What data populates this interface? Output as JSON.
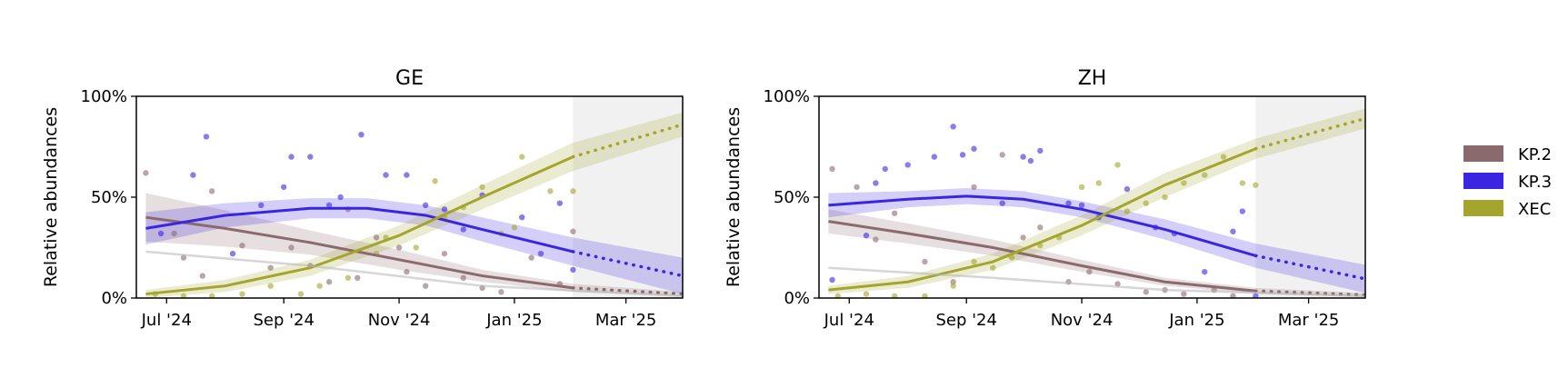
{
  "chart_data": {
    "type": "line",
    "ylabel": "Relative abundances",
    "y_ticks": [
      "0%",
      "50%",
      "100%"
    ],
    "x_ticks": [
      {
        "date": "2024-07-01",
        "label": "Jul '24"
      },
      {
        "date": "2024-09-01",
        "label": "Sep '24"
      },
      {
        "date": "2024-11-01",
        "label": "Nov '24"
      },
      {
        "date": "2025-01-01",
        "label": "Jan '25"
      },
      {
        "date": "2025-03-01",
        "label": "Mar '25"
      }
    ],
    "xlim": [
      "2024-06-15",
      "2025-03-31"
    ],
    "ylim": [
      0,
      1
    ],
    "forecast_start": "2025-02-01",
    "legend": {
      "position": "right",
      "entries": [
        {
          "name": "KP.2",
          "color": "#8b6a6e"
        },
        {
          "name": "KP.3",
          "color": "#3a26e0"
        },
        {
          "name": "XEC",
          "color": "#a3a52c"
        }
      ]
    },
    "colors": {
      "KP.2": "#8b6a6e",
      "KP.3": "#3a26e0",
      "XEC": "#a3a52c",
      "other": "#b4b4b4",
      "forecast_shade": "#e0e0e0"
    },
    "panels": [
      {
        "title": "GE",
        "series": [
          {
            "name": "KP.2",
            "fit": [
              [
                "2024-06-20",
                0.4
              ],
              [
                "2024-08-01",
                0.345
              ],
              [
                "2024-09-15",
                0.275
              ],
              [
                "2024-11-01",
                0.19
              ],
              [
                "2024-12-15",
                0.11
              ],
              [
                "2025-02-01",
                0.05
              ],
              [
                "2025-03-31",
                0.02
              ]
            ],
            "band": [
              0.12,
              0.09,
              0.06,
              0.05,
              0.03,
              0.02,
              0.01
            ],
            "points": [
              [
                "2024-06-20",
                0.62
              ],
              [
                "2024-07-05",
                0.32
              ],
              [
                "2024-07-10",
                0.2
              ],
              [
                "2024-07-20",
                0.11
              ],
              [
                "2024-07-25",
                0.53
              ],
              [
                "2024-08-10",
                0.26
              ],
              [
                "2024-08-25",
                0.15
              ],
              [
                "2024-09-05",
                0.25
              ],
              [
                "2024-09-15",
                0.16
              ],
              [
                "2024-09-25",
                0.08
              ],
              [
                "2024-10-05",
                0.44
              ],
              [
                "2024-10-10",
                0.1
              ],
              [
                "2024-10-20",
                0.3
              ],
              [
                "2024-11-01",
                0.25
              ],
              [
                "2024-11-05",
                0.13
              ],
              [
                "2024-11-15",
                0.06
              ],
              [
                "2024-11-25",
                0.22
              ],
              [
                "2024-12-05",
                0.1
              ],
              [
                "2024-12-15",
                0.05
              ],
              [
                "2024-12-25",
                0.03
              ],
              [
                "2025-01-10",
                0.2
              ],
              [
                "2025-01-25",
                0.07
              ],
              [
                "2025-02-01",
                0.33
              ]
            ]
          },
          {
            "name": "KP.3",
            "fit": [
              [
                "2024-06-20",
                0.345
              ],
              [
                "2024-08-01",
                0.41
              ],
              [
                "2024-09-15",
                0.445
              ],
              [
                "2024-10-15",
                0.445
              ],
              [
                "2024-11-15",
                0.41
              ],
              [
                "2024-12-15",
                0.34
              ],
              [
                "2025-02-01",
                0.23
              ],
              [
                "2025-03-31",
                0.11
              ]
            ],
            "band": [
              0.08,
              0.06,
              0.05,
              0.05,
              0.05,
              0.06,
              0.07,
              0.09
            ],
            "points": [
              [
                "2024-06-28",
                0.32
              ],
              [
                "2024-07-15",
                0.61
              ],
              [
                "2024-07-22",
                0.8
              ],
              [
                "2024-08-05",
                0.22
              ],
              [
                "2024-08-20",
                0.46
              ],
              [
                "2024-09-01",
                0.55
              ],
              [
                "2024-09-05",
                0.7
              ],
              [
                "2024-09-15",
                0.7
              ],
              [
                "2024-09-25",
                0.46
              ],
              [
                "2024-10-01",
                0.5
              ],
              [
                "2024-10-12",
                0.81
              ],
              [
                "2024-10-25",
                0.61
              ],
              [
                "2024-11-05",
                0.61
              ],
              [
                "2024-11-15",
                0.46
              ],
              [
                "2024-11-25",
                0.44
              ],
              [
                "2024-12-05",
                0.34
              ],
              [
                "2024-12-15",
                0.51
              ],
              [
                "2025-01-05",
                0.4
              ],
              [
                "2025-01-15",
                0.22
              ],
              [
                "2025-01-25",
                0.47
              ],
              [
                "2025-02-01",
                0.14
              ]
            ]
          },
          {
            "name": "XEC",
            "fit": [
              [
                "2024-06-20",
                0.02
              ],
              [
                "2024-08-01",
                0.06
              ],
              [
                "2024-09-15",
                0.15
              ],
              [
                "2024-11-01",
                0.31
              ],
              [
                "2024-12-15",
                0.5
              ],
              [
                "2025-02-01",
                0.7
              ],
              [
                "2025-03-31",
                0.86
              ]
            ],
            "band": [
              0.02,
              0.03,
              0.04,
              0.05,
              0.06,
              0.07,
              0.06
            ],
            "points": [
              [
                "2024-06-25",
                0.02
              ],
              [
                "2024-07-10",
                0.01
              ],
              [
                "2024-07-25",
                0.01
              ],
              [
                "2024-08-10",
                0.02
              ],
              [
                "2024-08-25",
                0.06
              ],
              [
                "2024-09-10",
                0.02
              ],
              [
                "2024-09-20",
                0.06
              ],
              [
                "2024-10-05",
                0.1
              ],
              [
                "2024-10-20",
                0.22
              ],
              [
                "2024-10-25",
                0.3
              ],
              [
                "2024-11-10",
                0.25
              ],
              [
                "2024-11-20",
                0.58
              ],
              [
                "2024-11-25",
                0.4
              ],
              [
                "2024-12-05",
                0.45
              ],
              [
                "2024-12-15",
                0.55
              ],
              [
                "2024-12-25",
                0.32
              ],
              [
                "2025-01-01",
                0.35
              ],
              [
                "2025-01-05",
                0.7
              ],
              [
                "2025-01-20",
                0.53
              ],
              [
                "2025-02-01",
                0.53
              ]
            ]
          },
          {
            "name": "other",
            "fit": [
              [
                "2024-06-20",
                0.23
              ],
              [
                "2024-09-15",
                0.16
              ],
              [
                "2024-12-15",
                0.06
              ],
              [
                "2025-03-31",
                0.01
              ]
            ],
            "band": [
              0,
              0,
              0,
              0
            ],
            "points": []
          }
        ]
      },
      {
        "title": "ZH",
        "series": [
          {
            "name": "KP.2",
            "fit": [
              [
                "2024-06-20",
                0.38
              ],
              [
                "2024-08-01",
                0.32
              ],
              [
                "2024-09-15",
                0.25
              ],
              [
                "2024-11-01",
                0.16
              ],
              [
                "2024-12-15",
                0.08
              ],
              [
                "2025-02-01",
                0.035
              ],
              [
                "2025-03-31",
                0.015
              ]
            ],
            "band": [
              0.06,
              0.05,
              0.04,
              0.03,
              0.02,
              0.015,
              0.01
            ],
            "points": [
              [
                "2024-06-22",
                0.64
              ],
              [
                "2024-07-05",
                0.55
              ],
              [
                "2024-07-15",
                0.29
              ],
              [
                "2024-07-25",
                0.42
              ],
              [
                "2024-08-10",
                0.18
              ],
              [
                "2024-08-25",
                0.08
              ],
              [
                "2024-09-05",
                0.55
              ],
              [
                "2024-09-20",
                0.71
              ],
              [
                "2024-10-01",
                0.3
              ],
              [
                "2024-10-10",
                0.35
              ],
              [
                "2024-10-25",
                0.08
              ],
              [
                "2024-11-05",
                0.13
              ],
              [
                "2024-11-20",
                0.07
              ],
              [
                "2024-12-05",
                0.03
              ],
              [
                "2024-12-15",
                0.04
              ],
              [
                "2024-12-25",
                0.02
              ],
              [
                "2025-01-10",
                0.04
              ],
              [
                "2025-01-20",
                0.01
              ]
            ]
          },
          {
            "name": "KP.3",
            "fit": [
              [
                "2024-06-20",
                0.46
              ],
              [
                "2024-08-01",
                0.49
              ],
              [
                "2024-09-01",
                0.505
              ],
              [
                "2024-10-01",
                0.49
              ],
              [
                "2024-11-01",
                0.44
              ],
              [
                "2024-12-15",
                0.34
              ],
              [
                "2025-02-01",
                0.21
              ],
              [
                "2025-03-31",
                0.095
              ]
            ],
            "band": [
              0.06,
              0.04,
              0.04,
              0.04,
              0.04,
              0.05,
              0.06,
              0.07
            ],
            "points": [
              [
                "2024-06-22",
                0.09
              ],
              [
                "2024-07-10",
                0.31
              ],
              [
                "2024-07-15",
                0.57
              ],
              [
                "2024-07-20",
                0.64
              ],
              [
                "2024-08-01",
                0.66
              ],
              [
                "2024-08-15",
                0.7
              ],
              [
                "2024-08-25",
                0.85
              ],
              [
                "2024-08-30",
                0.71
              ],
              [
                "2024-09-05",
                0.74
              ],
              [
                "2024-09-20",
                0.47
              ],
              [
                "2024-10-01",
                0.7
              ],
              [
                "2024-10-05",
                0.68
              ],
              [
                "2024-10-10",
                0.73
              ],
              [
                "2024-10-25",
                0.47
              ],
              [
                "2024-11-01",
                0.46
              ],
              [
                "2024-11-10",
                0.4
              ],
              [
                "2024-11-25",
                0.54
              ],
              [
                "2024-12-10",
                0.35
              ],
              [
                "2024-12-20",
                0.32
              ],
              [
                "2025-01-05",
                0.13
              ],
              [
                "2025-01-20",
                0.33
              ],
              [
                "2025-01-25",
                0.43
              ],
              [
                "2025-02-01",
                0.01
              ]
            ]
          },
          {
            "name": "XEC",
            "fit": [
              [
                "2024-06-20",
                0.04
              ],
              [
                "2024-08-01",
                0.08
              ],
              [
                "2024-09-15",
                0.18
              ],
              [
                "2024-11-01",
                0.36
              ],
              [
                "2024-12-15",
                0.56
              ],
              [
                "2025-02-01",
                0.74
              ],
              [
                "2025-03-31",
                0.89
              ]
            ],
            "band": [
              0.02,
              0.03,
              0.04,
              0.05,
              0.06,
              0.05,
              0.05
            ],
            "points": [
              [
                "2024-06-25",
                0.01
              ],
              [
                "2024-07-10",
                0.02
              ],
              [
                "2024-07-25",
                0.01
              ],
              [
                "2024-08-10",
                0.01
              ],
              [
                "2024-08-25",
                0.06
              ],
              [
                "2024-09-05",
                0.18
              ],
              [
                "2024-09-15",
                0.15
              ],
              [
                "2024-09-25",
                0.2
              ],
              [
                "2024-10-10",
                0.26
              ],
              [
                "2024-10-20",
                0.3
              ],
              [
                "2024-11-01",
                0.55
              ],
              [
                "2024-11-10",
                0.57
              ],
              [
                "2024-11-20",
                0.66
              ],
              [
                "2024-11-25",
                0.43
              ],
              [
                "2024-12-05",
                0.47
              ],
              [
                "2024-12-15",
                0.5
              ],
              [
                "2024-12-25",
                0.57
              ],
              [
                "2025-01-05",
                0.61
              ],
              [
                "2025-01-15",
                0.7
              ],
              [
                "2025-01-25",
                0.57
              ],
              [
                "2025-02-01",
                0.56
              ]
            ]
          },
          {
            "name": "other",
            "fit": [
              [
                "2024-06-20",
                0.15
              ],
              [
                "2024-09-15",
                0.1
              ],
              [
                "2024-12-15",
                0.04
              ],
              [
                "2025-03-31",
                0.01
              ]
            ],
            "band": [
              0,
              0,
              0,
              0
            ],
            "points": []
          }
        ]
      }
    ]
  }
}
